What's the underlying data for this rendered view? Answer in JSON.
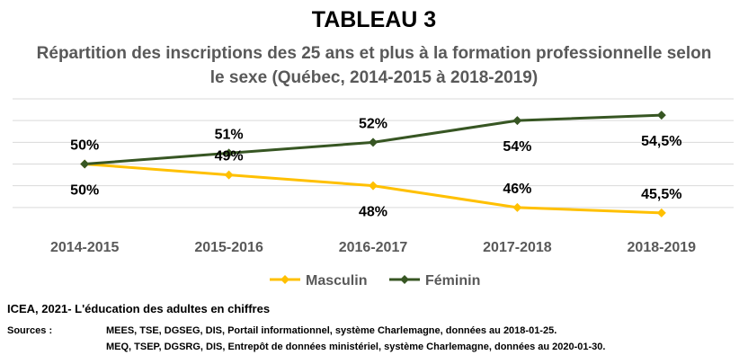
{
  "header": {
    "title": "TABLEAU 3",
    "subtitle": "Répartition des inscriptions des 25 ans et plus à la formation professionnelle selon le sexe (Québec, 2014-2015 à 2018-2019)"
  },
  "chart_data": {
    "type": "line",
    "categories": [
      "2014-2015",
      "2015-2016",
      "2016-2017",
      "2017-2018",
      "2018-2019"
    ],
    "ylim": [
      44,
      56
    ],
    "grid": true,
    "legend_position": "bottom",
    "series": [
      {
        "name": "Masculin",
        "color": "#FFC000",
        "values": [
          50,
          49,
          48,
          46,
          45.5
        ],
        "labels": [
          "50%",
          "49%",
          "48%",
          "46%",
          "45,5%"
        ]
      },
      {
        "name": "Féminin",
        "color": "#375623",
        "values": [
          50,
          51,
          52,
          54,
          54.5
        ],
        "labels": [
          "50%",
          "51%",
          "52%",
          "54%",
          "54,5%"
        ]
      }
    ]
  },
  "footer": {
    "source_title": "ICEA, 2021- L'éducation des adultes en chiffres",
    "sources_label": "Sources :",
    "sources": [
      "MEES, TSE, DGSEG, DIS, Portail informationnel, système Charlemagne, données au 2018-01-25.",
      "MEQ, TSEP, DGSRG, DIS, Entrepôt de données ministériel, système Charlemagne, données au 2020-01-30."
    ]
  }
}
